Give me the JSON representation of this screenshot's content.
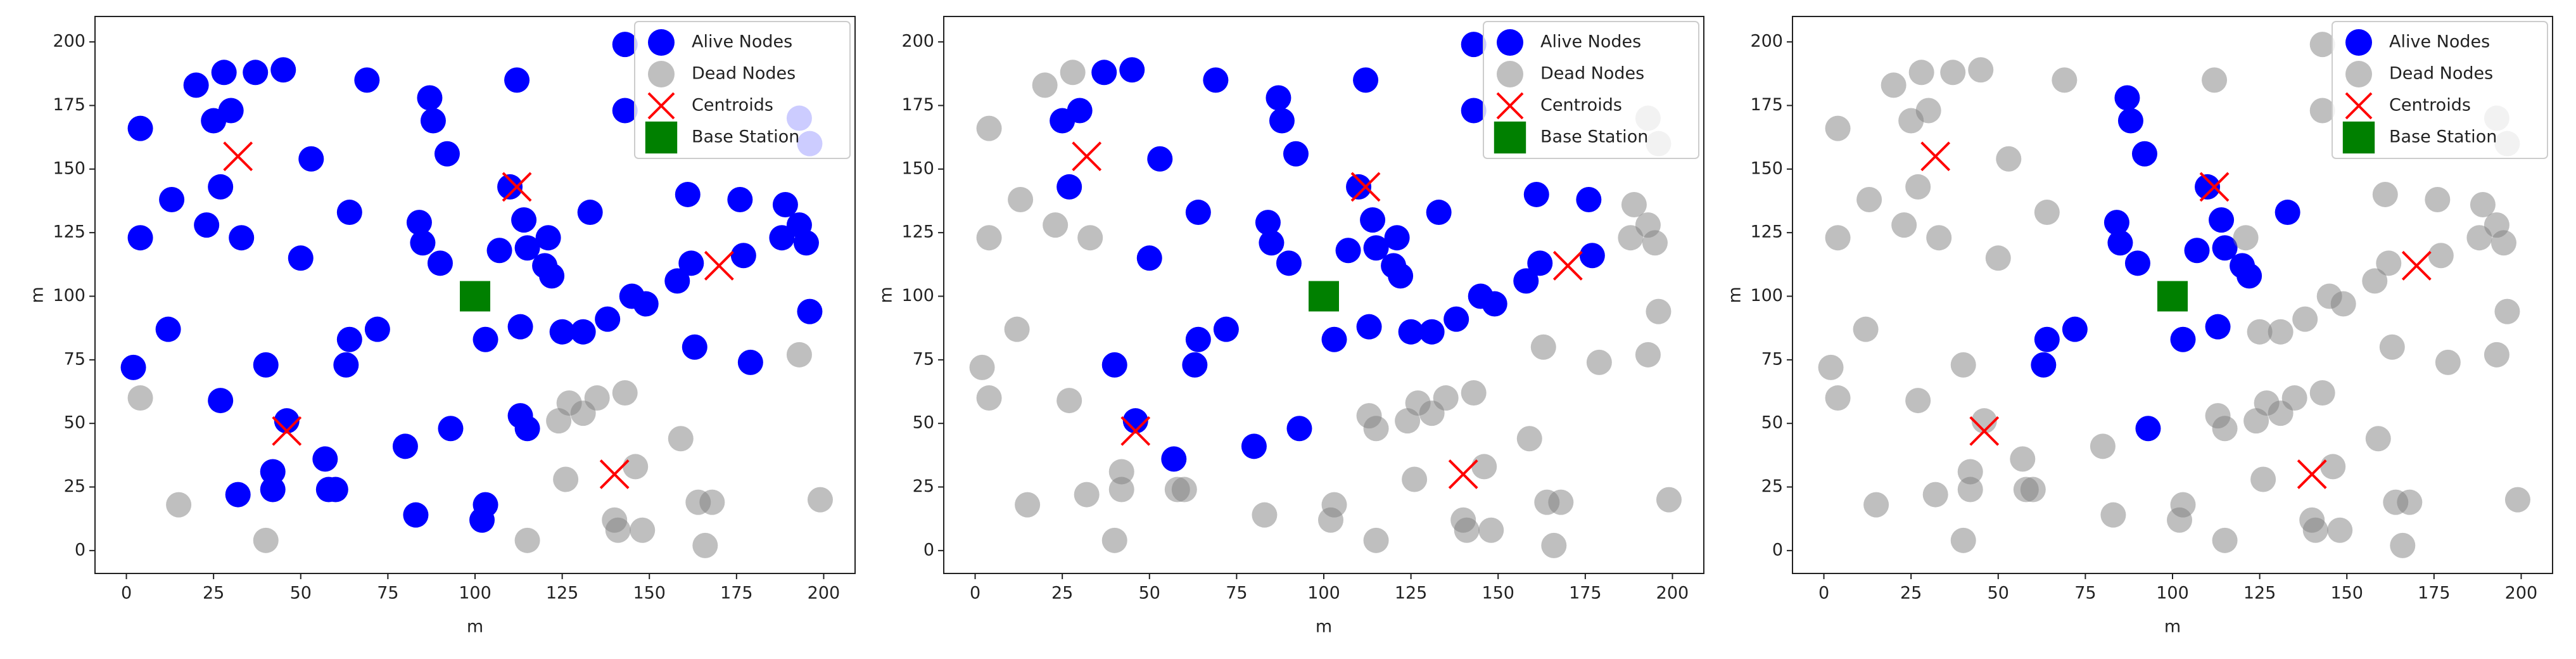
{
  "chart_data": [
    {
      "type": "scatter",
      "xlabel": "m",
      "ylabel": "m",
      "xlim": [
        -9,
        209
      ],
      "ylim": [
        -9,
        210
      ],
      "xticks": [
        0,
        25,
        50,
        75,
        100,
        125,
        150,
        175,
        200
      ],
      "yticks": [
        0,
        25,
        50,
        75,
        100,
        125,
        150,
        175,
        200
      ],
      "legend": "upper right",
      "series": [
        {
          "name": "Alive Nodes",
          "color": "blue",
          "marker": "circle",
          "x": [
            2,
            4,
            4,
            12,
            13,
            20,
            23,
            25,
            27,
            27,
            28,
            30,
            32,
            33,
            37,
            40,
            42,
            42,
            45,
            46,
            50,
            53,
            57,
            58,
            60,
            63,
            64,
            64,
            69,
            72,
            80,
            83,
            84,
            85,
            87,
            88,
            90,
            92,
            93,
            102,
            103,
            103,
            107,
            110,
            112,
            113,
            113,
            114,
            115,
            115,
            120,
            121,
            122,
            125,
            131,
            133,
            138,
            143,
            143,
            145,
            149,
            158,
            161,
            162,
            163,
            176,
            177,
            179,
            188,
            189,
            193,
            195,
            196,
            193,
            196
          ],
          "values": [
            72,
            123,
            166,
            87,
            138,
            183,
            128,
            169,
            143,
            59,
            188,
            173,
            22,
            123,
            188,
            73,
            31,
            24,
            189,
            51,
            115,
            154,
            36,
            24,
            24,
            73,
            83,
            133,
            185,
            87,
            41,
            14,
            129,
            121,
            178,
            169,
            113,
            156,
            48,
            12,
            18,
            83,
            118,
            143,
            185,
            88,
            53,
            130,
            48,
            119,
            112,
            123,
            108,
            86,
            86,
            133,
            91,
            199,
            173,
            100,
            97,
            106,
            140,
            113,
            80,
            138,
            116,
            74,
            123,
            136,
            128,
            121,
            94,
            170,
            160
          ]
        },
        {
          "name": "Dead Nodes",
          "color": "gray",
          "alpha": 0.5,
          "marker": "circle",
          "x": [
            4,
            15,
            40,
            115,
            124,
            126,
            127,
            131,
            135,
            140,
            141,
            143,
            146,
            148,
            159,
            164,
            168,
            166,
            193,
            199
          ],
          "values": [
            60,
            18,
            4,
            4,
            51,
            28,
            58,
            54,
            60,
            12,
            8,
            62,
            33,
            8,
            44,
            19,
            19,
            2,
            77,
            20
          ]
        },
        {
          "name": "Centroids",
          "color": "red",
          "marker": "x",
          "x": [
            32,
            112,
            170,
            46,
            140
          ],
          "values": [
            155,
            143,
            112,
            47,
            30
          ]
        },
        {
          "name": "Base Station",
          "color": "green",
          "marker": "square",
          "x": [
            100
          ],
          "values": [
            100
          ]
        }
      ]
    },
    {
      "type": "scatter",
      "xlabel": "m",
      "ylabel": "m",
      "xlim": [
        -9,
        209
      ],
      "ylim": [
        -9,
        210
      ],
      "xticks": [
        0,
        25,
        50,
        75,
        100,
        125,
        150,
        175,
        200
      ],
      "yticks": [
        0,
        25,
        50,
        75,
        100,
        125,
        150,
        175,
        200
      ],
      "legend": "upper right",
      "series": [
        {
          "name": "Alive Nodes",
          "color": "blue",
          "marker": "circle",
          "x": [
            25,
            27,
            30,
            37,
            40,
            45,
            46,
            50,
            53,
            57,
            63,
            64,
            64,
            69,
            72,
            80,
            84,
            85,
            87,
            88,
            90,
            92,
            93,
            103,
            107,
            110,
            112,
            113,
            114,
            115,
            120,
            121,
            122,
            125,
            131,
            133,
            138,
            143,
            143,
            145,
            149,
            158,
            161,
            162,
            176,
            177
          ],
          "values": [
            169,
            143,
            173,
            188,
            73,
            189,
            51,
            115,
            154,
            36,
            73,
            83,
            133,
            185,
            87,
            41,
            129,
            121,
            178,
            169,
            113,
            156,
            48,
            83,
            118,
            143,
            185,
            88,
            130,
            119,
            112,
            123,
            108,
            86,
            86,
            133,
            91,
            199,
            173,
            100,
            97,
            106,
            140,
            113,
            138,
            116
          ]
        },
        {
          "name": "Dead Nodes",
          "color": "gray",
          "alpha": 0.5,
          "marker": "circle",
          "x": [
            2,
            4,
            4,
            12,
            13,
            20,
            23,
            27,
            28,
            32,
            33,
            42,
            42,
            58,
            60,
            83,
            102,
            103,
            113,
            115,
            163,
            179,
            188,
            189,
            193,
            195,
            196,
            193,
            196,
            4,
            15,
            40,
            115,
            124,
            126,
            127,
            131,
            135,
            140,
            141,
            143,
            146,
            148,
            159,
            164,
            168,
            166,
            193,
            199
          ],
          "values": [
            72,
            123,
            166,
            87,
            138,
            183,
            128,
            59,
            188,
            22,
            123,
            31,
            24,
            24,
            24,
            14,
            12,
            18,
            53,
            48,
            80,
            74,
            123,
            136,
            128,
            121,
            94,
            170,
            160,
            60,
            18,
            4,
            4,
            51,
            28,
            58,
            54,
            60,
            12,
            8,
            62,
            33,
            8,
            44,
            19,
            19,
            2,
            77,
            20
          ]
        },
        {
          "name": "Centroids",
          "color": "red",
          "marker": "x",
          "x": [
            32,
            112,
            170,
            46,
            140
          ],
          "values": [
            155,
            143,
            112,
            47,
            30
          ]
        },
        {
          "name": "Base Station",
          "color": "green",
          "marker": "square",
          "x": [
            100
          ],
          "values": [
            100
          ]
        }
      ]
    },
    {
      "type": "scatter",
      "xlabel": "m",
      "ylabel": "m",
      "xlim": [
        -9,
        209
      ],
      "ylim": [
        -9,
        210
      ],
      "xticks": [
        0,
        25,
        50,
        75,
        100,
        125,
        150,
        175,
        200
      ],
      "yticks": [
        0,
        25,
        50,
        75,
        100,
        125,
        150,
        175,
        200
      ],
      "legend": "upper right",
      "series": [
        {
          "name": "Alive Nodes",
          "color": "blue",
          "marker": "circle",
          "x": [
            63,
            64,
            72,
            84,
            85,
            87,
            88,
            90,
            92,
            93,
            103,
            107,
            110,
            113,
            114,
            115,
            120,
            122,
            133
          ],
          "values": [
            73,
            83,
            87,
            129,
            121,
            178,
            169,
            113,
            156,
            48,
            83,
            118,
            143,
            88,
            130,
            119,
            112,
            108,
            133
          ]
        },
        {
          "name": "Dead Nodes",
          "color": "gray",
          "alpha": 0.5,
          "marker": "circle",
          "x": [
            2,
            4,
            4,
            12,
            13,
            20,
            23,
            25,
            27,
            27,
            28,
            30,
            32,
            33,
            37,
            40,
            42,
            42,
            45,
            46,
            50,
            53,
            57,
            58,
            60,
            64,
            69,
            80,
            83,
            102,
            103,
            112,
            113,
            115,
            121,
            125,
            131,
            138,
            143,
            143,
            145,
            149,
            158,
            161,
            162,
            163,
            176,
            177,
            179,
            188,
            189,
            193,
            195,
            196,
            193,
            196,
            4,
            15,
            40,
            115,
            124,
            126,
            127,
            131,
            135,
            140,
            141,
            143,
            146,
            148,
            159,
            164,
            168,
            166,
            193,
            199
          ],
          "values": [
            72,
            123,
            166,
            87,
            138,
            183,
            128,
            169,
            143,
            59,
            188,
            173,
            22,
            123,
            188,
            73,
            31,
            24,
            189,
            51,
            115,
            154,
            36,
            24,
            24,
            133,
            185,
            41,
            14,
            12,
            18,
            185,
            53,
            48,
            123,
            86,
            86,
            91,
            199,
            173,
            100,
            97,
            106,
            140,
            113,
            80,
            138,
            116,
            74,
            123,
            136,
            128,
            121,
            94,
            170,
            160,
            60,
            18,
            4,
            4,
            51,
            28,
            58,
            54,
            60,
            12,
            8,
            62,
            33,
            8,
            44,
            19,
            19,
            2,
            77,
            20
          ]
        },
        {
          "name": "Centroids",
          "color": "red",
          "marker": "x",
          "x": [
            32,
            112,
            170,
            46,
            140
          ],
          "values": [
            155,
            143,
            112,
            47,
            30
          ]
        },
        {
          "name": "Base Station",
          "color": "green",
          "marker": "square",
          "x": [
            100
          ],
          "values": [
            100
          ]
        }
      ]
    }
  ]
}
